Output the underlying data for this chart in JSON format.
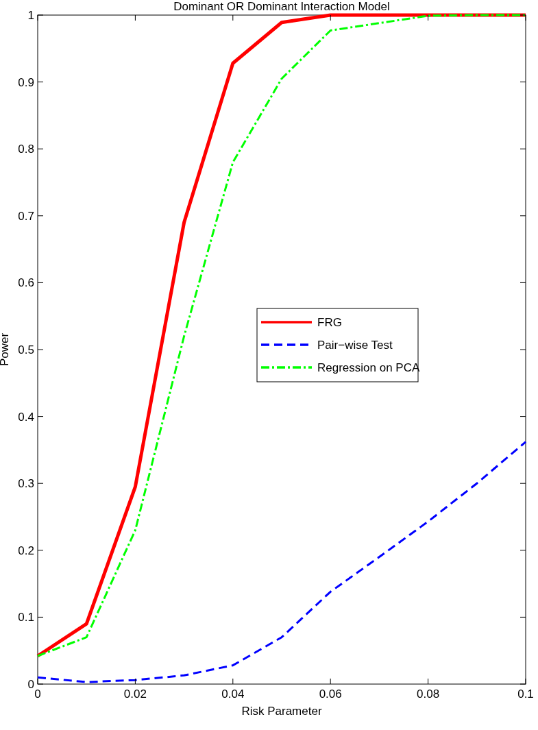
{
  "chart_data": {
    "type": "line",
    "title": "Dominant OR Dominant Interaction Model",
    "xlabel": "Risk Parameter",
    "ylabel": "Power",
    "x": [
      0,
      0.01,
      0.02,
      0.03,
      0.04,
      0.05,
      0.06,
      0.07,
      0.08,
      0.09,
      0.1
    ],
    "series": [
      {
        "name": "FRG",
        "color": "#ff0000",
        "line_style": "solid",
        "values": [
          0.042,
          0.09,
          0.295,
          0.69,
          0.928,
          0.989,
          1,
          1,
          1,
          1,
          1
        ]
      },
      {
        "name": "Pair−wise Test",
        "color": "#0000ff",
        "line_style": "dashed",
        "values": [
          0.01,
          0.003,
          0.006,
          0.013,
          0.028,
          0.07,
          0.138,
          0.19,
          0.243,
          0.3,
          0.362
        ]
      },
      {
        "name": "Regression on PCA",
        "color": "#00ff00",
        "line_style": "dashdot",
        "values": [
          0.042,
          0.07,
          0.23,
          0.52,
          0.78,
          0.905,
          0.977,
          0.988,
          0.999,
          1,
          1
        ]
      }
    ],
    "xlim": [
      0,
      0.1
    ],
    "xticks": [
      0,
      0.02,
      0.04,
      0.06,
      0.08,
      0.1
    ],
    "ylim": [
      0,
      1
    ],
    "yticks": [
      0,
      0.1,
      0.2,
      0.3,
      0.4,
      0.5,
      0.6,
      0.7,
      0.8,
      0.9,
      1
    ],
    "grid": false,
    "legend": "right"
  }
}
